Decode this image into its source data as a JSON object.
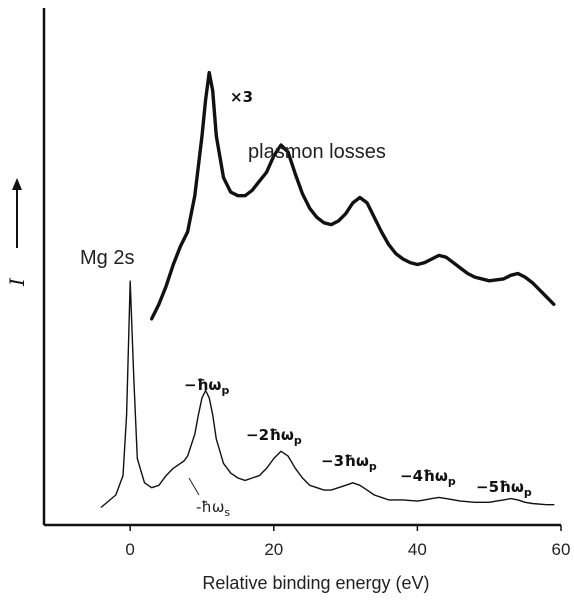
{
  "chart_data": {
    "type": "line",
    "xlabel": "Relative binding energy (eV)",
    "ylabel": "I",
    "xlim": [
      -12,
      60
    ],
    "xticks": [
      "0",
      "20",
      "40",
      "60"
    ],
    "xtick_values": [
      0,
      20,
      40,
      60
    ],
    "grid": false,
    "series": [
      {
        "role": "lower",
        "x": [
          -4,
          -2,
          -1,
          -0.5,
          0,
          0.5,
          1,
          2,
          3,
          4,
          5,
          6,
          7,
          7.5,
          8,
          9,
          9.5,
          10,
          10.5,
          11,
          11.5,
          12,
          13,
          14,
          15,
          16,
          17,
          18,
          19,
          20,
          21,
          22,
          23,
          24,
          25,
          26,
          27,
          28,
          29,
          30,
          31,
          32,
          33,
          34,
          35,
          36,
          38,
          40,
          41,
          42,
          43,
          44,
          46,
          48,
          50,
          51,
          52,
          53,
          54,
          55,
          56,
          58,
          59
        ],
        "y": [
          0.02,
          0.07,
          0.15,
          0.4,
          0.95,
          0.55,
          0.22,
          0.12,
          0.1,
          0.11,
          0.15,
          0.18,
          0.2,
          0.21,
          0.23,
          0.32,
          0.4,
          0.47,
          0.5,
          0.47,
          0.4,
          0.3,
          0.2,
          0.16,
          0.14,
          0.13,
          0.14,
          0.15,
          0.18,
          0.22,
          0.25,
          0.23,
          0.18,
          0.14,
          0.11,
          0.1,
          0.09,
          0.09,
          0.1,
          0.11,
          0.12,
          0.11,
          0.09,
          0.07,
          0.06,
          0.05,
          0.05,
          0.045,
          0.05,
          0.055,
          0.06,
          0.055,
          0.045,
          0.04,
          0.04,
          0.045,
          0.05,
          0.055,
          0.05,
          0.04,
          0.035,
          0.03,
          0.03
        ]
      },
      {
        "role": "upper",
        "scale": "x3",
        "x": [
          3,
          4,
          5,
          6,
          7,
          8,
          9,
          10,
          10.5,
          11,
          11.5,
          12,
          13,
          14,
          15,
          16,
          17,
          18,
          19,
          20,
          21,
          22,
          23,
          24,
          25,
          26,
          27,
          28,
          29,
          30,
          31,
          32,
          33,
          34,
          35,
          36,
          37,
          38,
          39,
          40,
          41,
          42,
          43,
          44,
          45,
          46,
          47,
          48,
          50,
          52,
          53,
          54,
          55,
          56,
          57,
          58,
          59
        ],
        "y": [
          0.04,
          0.12,
          0.22,
          0.34,
          0.44,
          0.52,
          0.72,
          1.05,
          1.25,
          1.4,
          1.3,
          1.05,
          0.82,
          0.74,
          0.72,
          0.72,
          0.75,
          0.8,
          0.85,
          0.94,
          1.0,
          0.96,
          0.84,
          0.73,
          0.65,
          0.6,
          0.57,
          0.56,
          0.58,
          0.62,
          0.68,
          0.71,
          0.68,
          0.6,
          0.52,
          0.45,
          0.4,
          0.37,
          0.35,
          0.34,
          0.35,
          0.37,
          0.39,
          0.38,
          0.35,
          0.32,
          0.29,
          0.27,
          0.25,
          0.26,
          0.28,
          0.29,
          0.27,
          0.24,
          0.2,
          0.16,
          0.12
        ]
      }
    ],
    "annotations": {
      "mg2s": "Mg 2s",
      "plasmon": "plasmon losses",
      "x3": "×3",
      "p1": "−ħω",
      "p2": "−2ħω",
      "p3": "−3ħω",
      "p4": "−4ħω",
      "p5": "−5ħω",
      "p_sub": "p",
      "s_label": "-ħω",
      "s_sub": "s"
    }
  }
}
